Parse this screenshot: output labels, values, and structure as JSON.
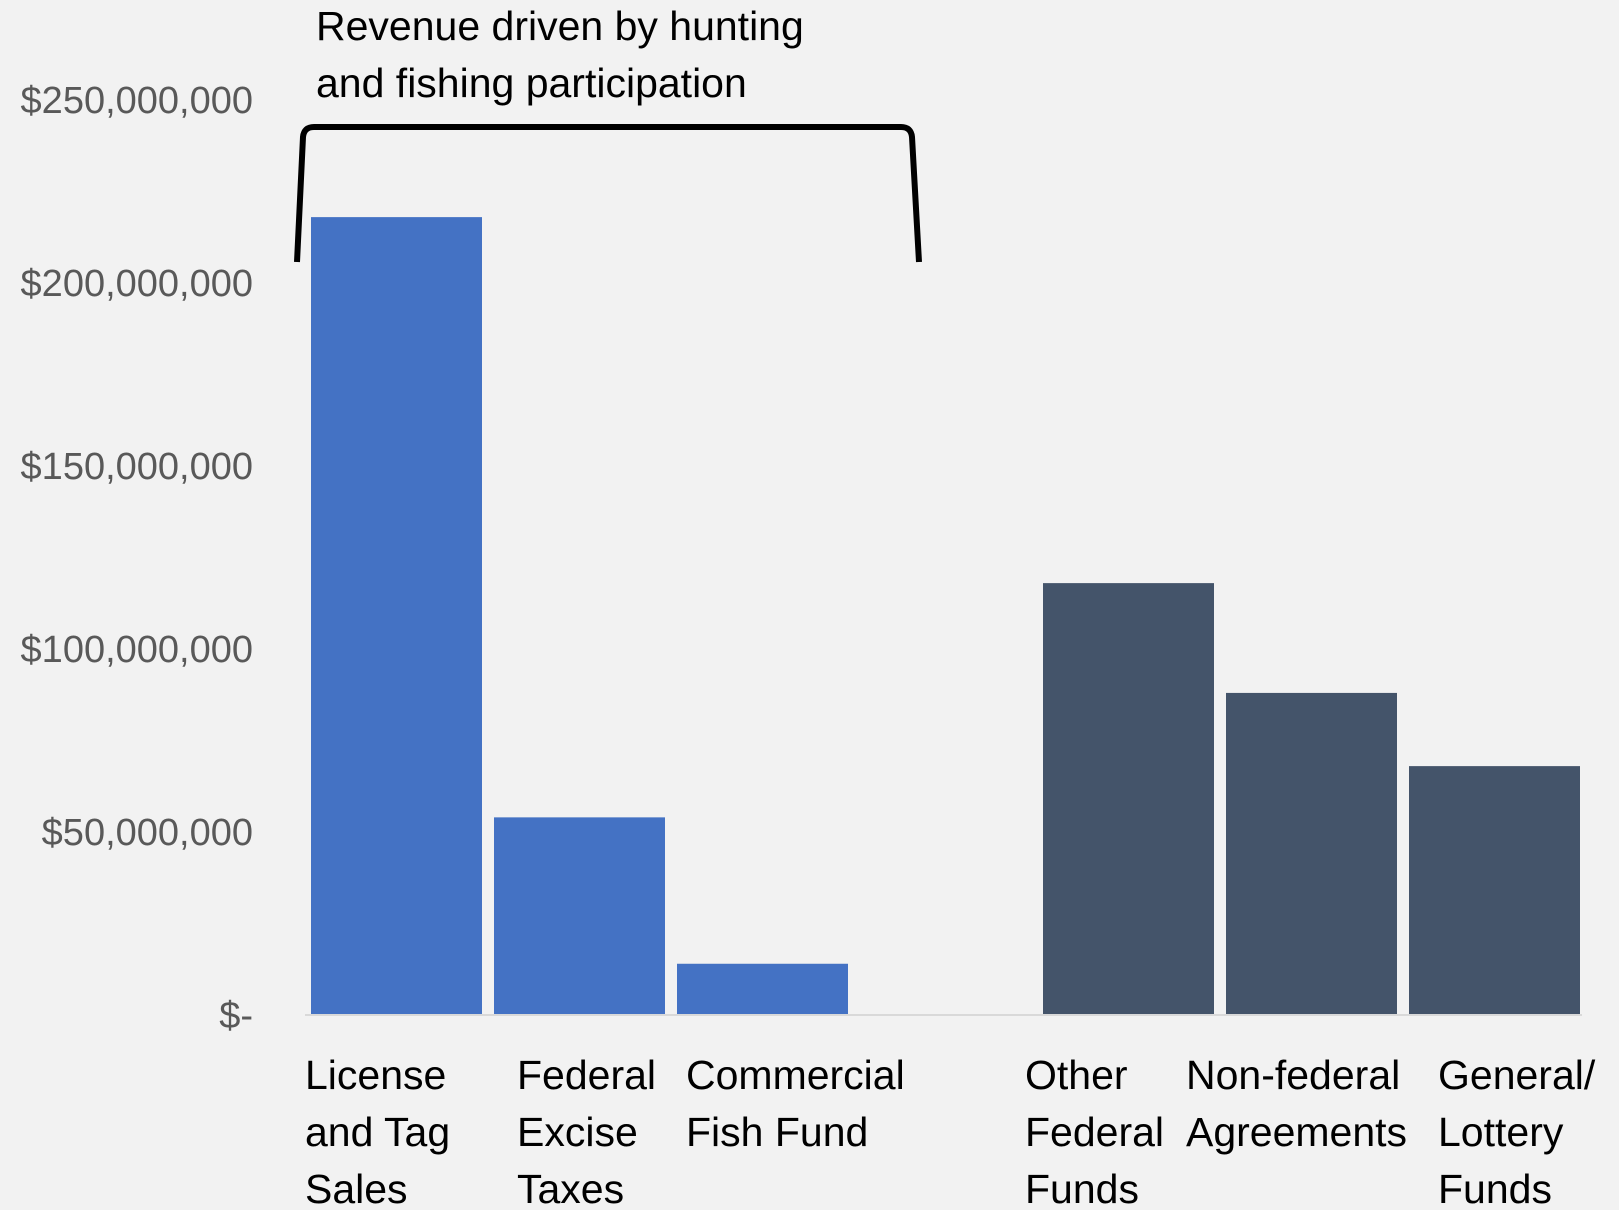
{
  "chart_data": {
    "type": "bar",
    "categories": [
      "License and Tag Sales",
      "Federal Excise Taxes",
      "Commercial Fish Fund",
      "Other Federal Funds",
      "Non-federal Agreements",
      "General/ Lottery Funds"
    ],
    "category_lines": [
      [
        "License",
        "and Tag",
        "Sales"
      ],
      [
        "Federal",
        "Excise",
        "Taxes"
      ],
      [
        "Commercial",
        "Fish Fund"
      ],
      [
        "Other",
        "Federal",
        "Funds"
      ],
      [
        "Non-federal",
        "Agreements"
      ],
      [
        "General/",
        "Lottery",
        "Funds"
      ]
    ],
    "values": [
      218000000,
      54000000,
      14000000,
      118000000,
      88000000,
      68000000
    ],
    "groups": [
      "hunting-fishing",
      "hunting-fishing",
      "hunting-fishing",
      "other",
      "other",
      "other"
    ],
    "colors": {
      "hunting-fishing": "#4472c4",
      "other": "#44546a"
    },
    "ylim": [
      0,
      250000000
    ],
    "yticks": [
      0,
      50000000,
      100000000,
      150000000,
      200000000,
      250000000
    ],
    "ytick_labels": [
      "$-",
      "$50,000,000",
      "$100,000,000",
      "$150,000,000",
      "$200,000,000",
      "$250,000,000"
    ],
    "annotation": {
      "lines": [
        "Revenue driven by hunting",
        "and fishing participation"
      ],
      "spans_categories": [
        0,
        2
      ]
    },
    "title": "",
    "xlabel": "",
    "ylabel": "",
    "grid": false,
    "legend": "none"
  }
}
